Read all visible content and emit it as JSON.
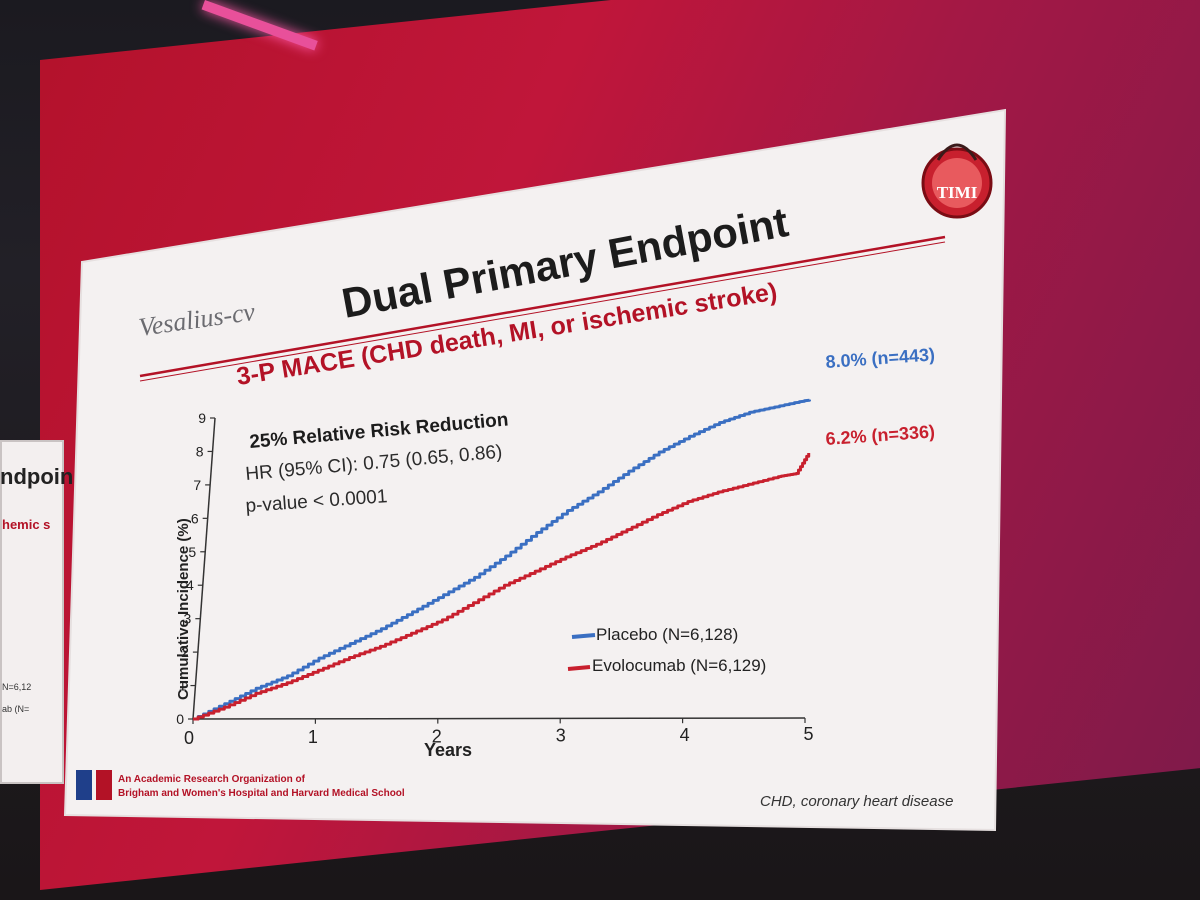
{
  "slide": {
    "title": "Dual Primary Endpoint",
    "brand": "Vesalius-cv",
    "logo_text": "TIMI",
    "subtitle": "3-P MACE (CHD death, MI, or ischemic stroke)",
    "stats": {
      "line1": "25% Relative Risk Reduction",
      "line2": "HR (95% CI): 0.75 (0.65, 0.86)",
      "line3": "p-value < 0.0001"
    },
    "end_labels": {
      "placebo": "8.0% (n=443)",
      "evolocumab": "6.2% (n=336)"
    },
    "footer_org_line1": "An Academic Research Organization of",
    "footer_org_line2": "Brigham and Women's Hospital and Harvard Medical School",
    "footnote": "CHD, coronary heart disease",
    "left_partial_title": "ndpoin",
    "left_partial_sub": "hemic s",
    "left_partial_n1": "N=6,12",
    "left_partial_n2": "ab (N="
  },
  "colors": {
    "placebo": "#3a6fc2",
    "evolocumab": "#c8202e",
    "accent_red": "#b31226",
    "slide_bg": "#f4f1f1",
    "screen_red": "#b4122c"
  },
  "chart_data": {
    "type": "line",
    "xlabel": "Years",
    "ylabel": "Cumulative Incidence (%)",
    "xlim": [
      0,
      5
    ],
    "ylim": [
      0,
      9
    ],
    "xticks": [
      "0",
      "1",
      "2",
      "3",
      "4",
      "5"
    ],
    "yticks": [
      "0",
      "1",
      "2",
      "3",
      "4",
      "5",
      "6",
      "7",
      "8",
      "9"
    ],
    "series": [
      {
        "name": "Placebo (N=6,128)",
        "color": "#3a6fc2",
        "x": [
          0,
          0.25,
          0.5,
          0.75,
          1.0,
          1.25,
          1.5,
          1.75,
          2.0,
          2.25,
          2.5,
          2.75,
          3.0,
          3.25,
          3.5,
          3.75,
          4.0,
          4.25,
          4.5,
          4.75,
          5.0
        ],
        "y": [
          0,
          0.45,
          0.9,
          1.25,
          1.75,
          2.15,
          2.55,
          3.0,
          3.45,
          3.9,
          4.45,
          5.05,
          5.6,
          6.05,
          6.55,
          7.0,
          7.35,
          7.65,
          7.85,
          7.95,
          8.05
        ]
      },
      {
        "name": "Evolocumab (N=6,129)",
        "color": "#c8202e",
        "x": [
          0,
          0.25,
          0.5,
          0.75,
          1.0,
          1.25,
          1.5,
          1.75,
          2.0,
          2.25,
          2.5,
          2.75,
          3.0,
          3.25,
          3.5,
          3.75,
          4.0,
          4.25,
          4.5,
          4.75,
          4.9,
          5.0
        ],
        "y": [
          0,
          0.35,
          0.75,
          1.05,
          1.4,
          1.75,
          2.05,
          2.4,
          2.75,
          3.2,
          3.65,
          4.0,
          4.35,
          4.65,
          5.0,
          5.35,
          5.65,
          5.85,
          6.0,
          6.15,
          6.2,
          6.7
        ]
      }
    ]
  }
}
